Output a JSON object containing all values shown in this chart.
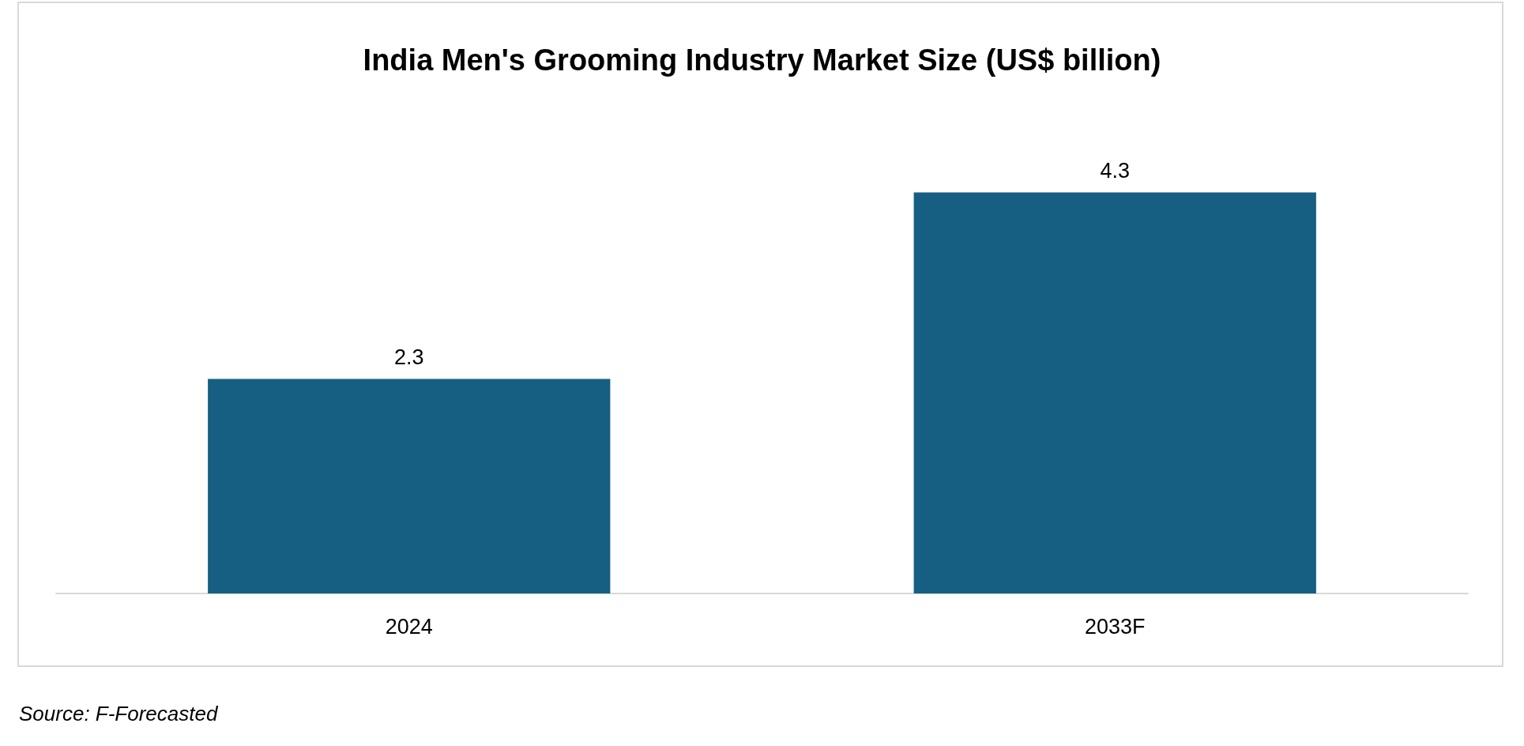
{
  "chart_data": {
    "type": "bar",
    "title": "India Men's Grooming Industry Market Size (US$ billion)",
    "categories": [
      "2024",
      "2033F"
    ],
    "values": [
      2.3,
      4.3
    ],
    "color": "#175f82",
    "data_labels": true,
    "annotations": [
      "Source: F-Forecasted"
    ]
  }
}
